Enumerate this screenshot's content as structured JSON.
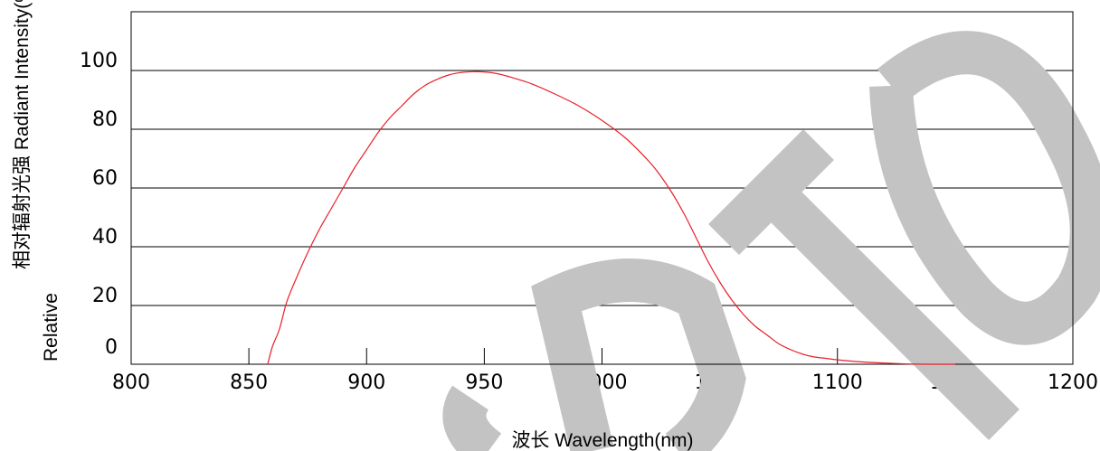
{
  "chart_data": {
    "type": "line",
    "title": "",
    "xlabel": "波长  Wavelength(nm)",
    "ylabel_top": "相对辐射光强    Radiant Intensity(%)",
    "ylabel_bottom": "Relative",
    "xlim": [
      800,
      1200
    ],
    "ylim": [
      0,
      120
    ],
    "xticks": [
      800,
      850,
      900,
      950,
      1000,
      1050,
      1100,
      1150,
      1200
    ],
    "yticks": [
      0,
      20,
      40,
      60,
      80,
      100
    ],
    "ygrid": [
      20,
      40,
      60,
      80,
      100
    ],
    "grid": "horizontal",
    "line_color": "#e8202a",
    "series": [
      {
        "x": [
          858,
          860,
          863,
          866,
          870,
          875,
          880,
          885,
          890,
          895,
          900,
          905,
          910,
          915,
          920,
          925,
          930,
          935,
          940,
          945,
          950,
          955,
          960,
          970,
          980,
          990,
          1000,
          1010,
          1020,
          1025,
          1030,
          1035,
          1040,
          1045,
          1050,
          1055,
          1060,
          1065,
          1070,
          1075,
          1080,
          1085,
          1090,
          1095,
          1100,
          1110,
          1120,
          1130,
          1140,
          1150
        ],
        "y": [
          0,
          6,
          12,
          21,
          29,
          38,
          46,
          53,
          60,
          67,
          73,
          79,
          84,
          88,
          92,
          95,
          97,
          98.5,
          99.3,
          99.6,
          99.5,
          99,
          98,
          95.5,
          92,
          88,
          83,
          77,
          69,
          64,
          58,
          51,
          43,
          35,
          28,
          22,
          17,
          13,
          10,
          7,
          5,
          3.5,
          2.5,
          2,
          1.5,
          0.8,
          0.4,
          0.1,
          0,
          0
        ]
      }
    ]
  },
  "watermark": {
    "text": "SDTO",
    "color": "#c3c3c3"
  }
}
